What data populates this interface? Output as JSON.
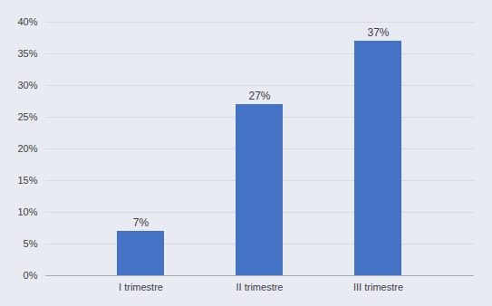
{
  "chart_data": {
    "type": "bar",
    "categories": [
      "I trimestre",
      "II trimestre",
      "III trimestre"
    ],
    "values": [
      7,
      27,
      37
    ],
    "value_labels": [
      "7%",
      "27%",
      "37%"
    ],
    "color": "#4472C4",
    "ylim": [
      0,
      40
    ],
    "yticks": [
      {
        "value": 0,
        "label": "0%"
      },
      {
        "value": 5,
        "label": "5%"
      },
      {
        "value": 10,
        "label": "10%"
      },
      {
        "value": 15,
        "label": "15%"
      },
      {
        "value": 20,
        "label": "20%"
      },
      {
        "value": 25,
        "label": "25%"
      },
      {
        "value": 30,
        "label": "30%"
      },
      {
        "value": 35,
        "label": "35%"
      },
      {
        "value": 40,
        "label": "40%"
      }
    ],
    "grid": true,
    "data_labels": true
  }
}
